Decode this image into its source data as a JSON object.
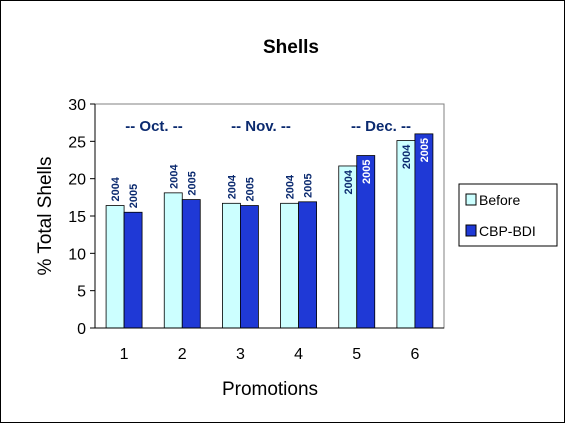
{
  "chart_data": {
    "type": "bar",
    "title": "Shells",
    "xlabel": "Promotions",
    "ylabel": "% Total Shells",
    "ylim": [
      0,
      30
    ],
    "yticks": [
      0,
      5,
      10,
      15,
      20,
      25,
      30
    ],
    "categories": [
      "1",
      "2",
      "3",
      "4",
      "5",
      "6"
    ],
    "series": [
      {
        "name": "Before",
        "color": "#ccffff",
        "values": [
          16.4,
          18.1,
          16.7,
          16.7,
          21.7,
          25.1
        ],
        "bar_labels": [
          "2004",
          "2004",
          "2004",
          "2004",
          "2004",
          "2004"
        ]
      },
      {
        "name": "CBP-BDI",
        "color": "#1f39d6",
        "values": [
          15.5,
          17.2,
          16.4,
          16.9,
          23.1,
          26.0
        ],
        "bar_labels": [
          "2005",
          "2005",
          "2005",
          "2005",
          "2005",
          "2005"
        ]
      }
    ],
    "month_labels": [
      "-- Oct. --",
      "-- Nov. --",
      "-- Dec.  --"
    ],
    "legend_position": "right",
    "grid": false
  }
}
